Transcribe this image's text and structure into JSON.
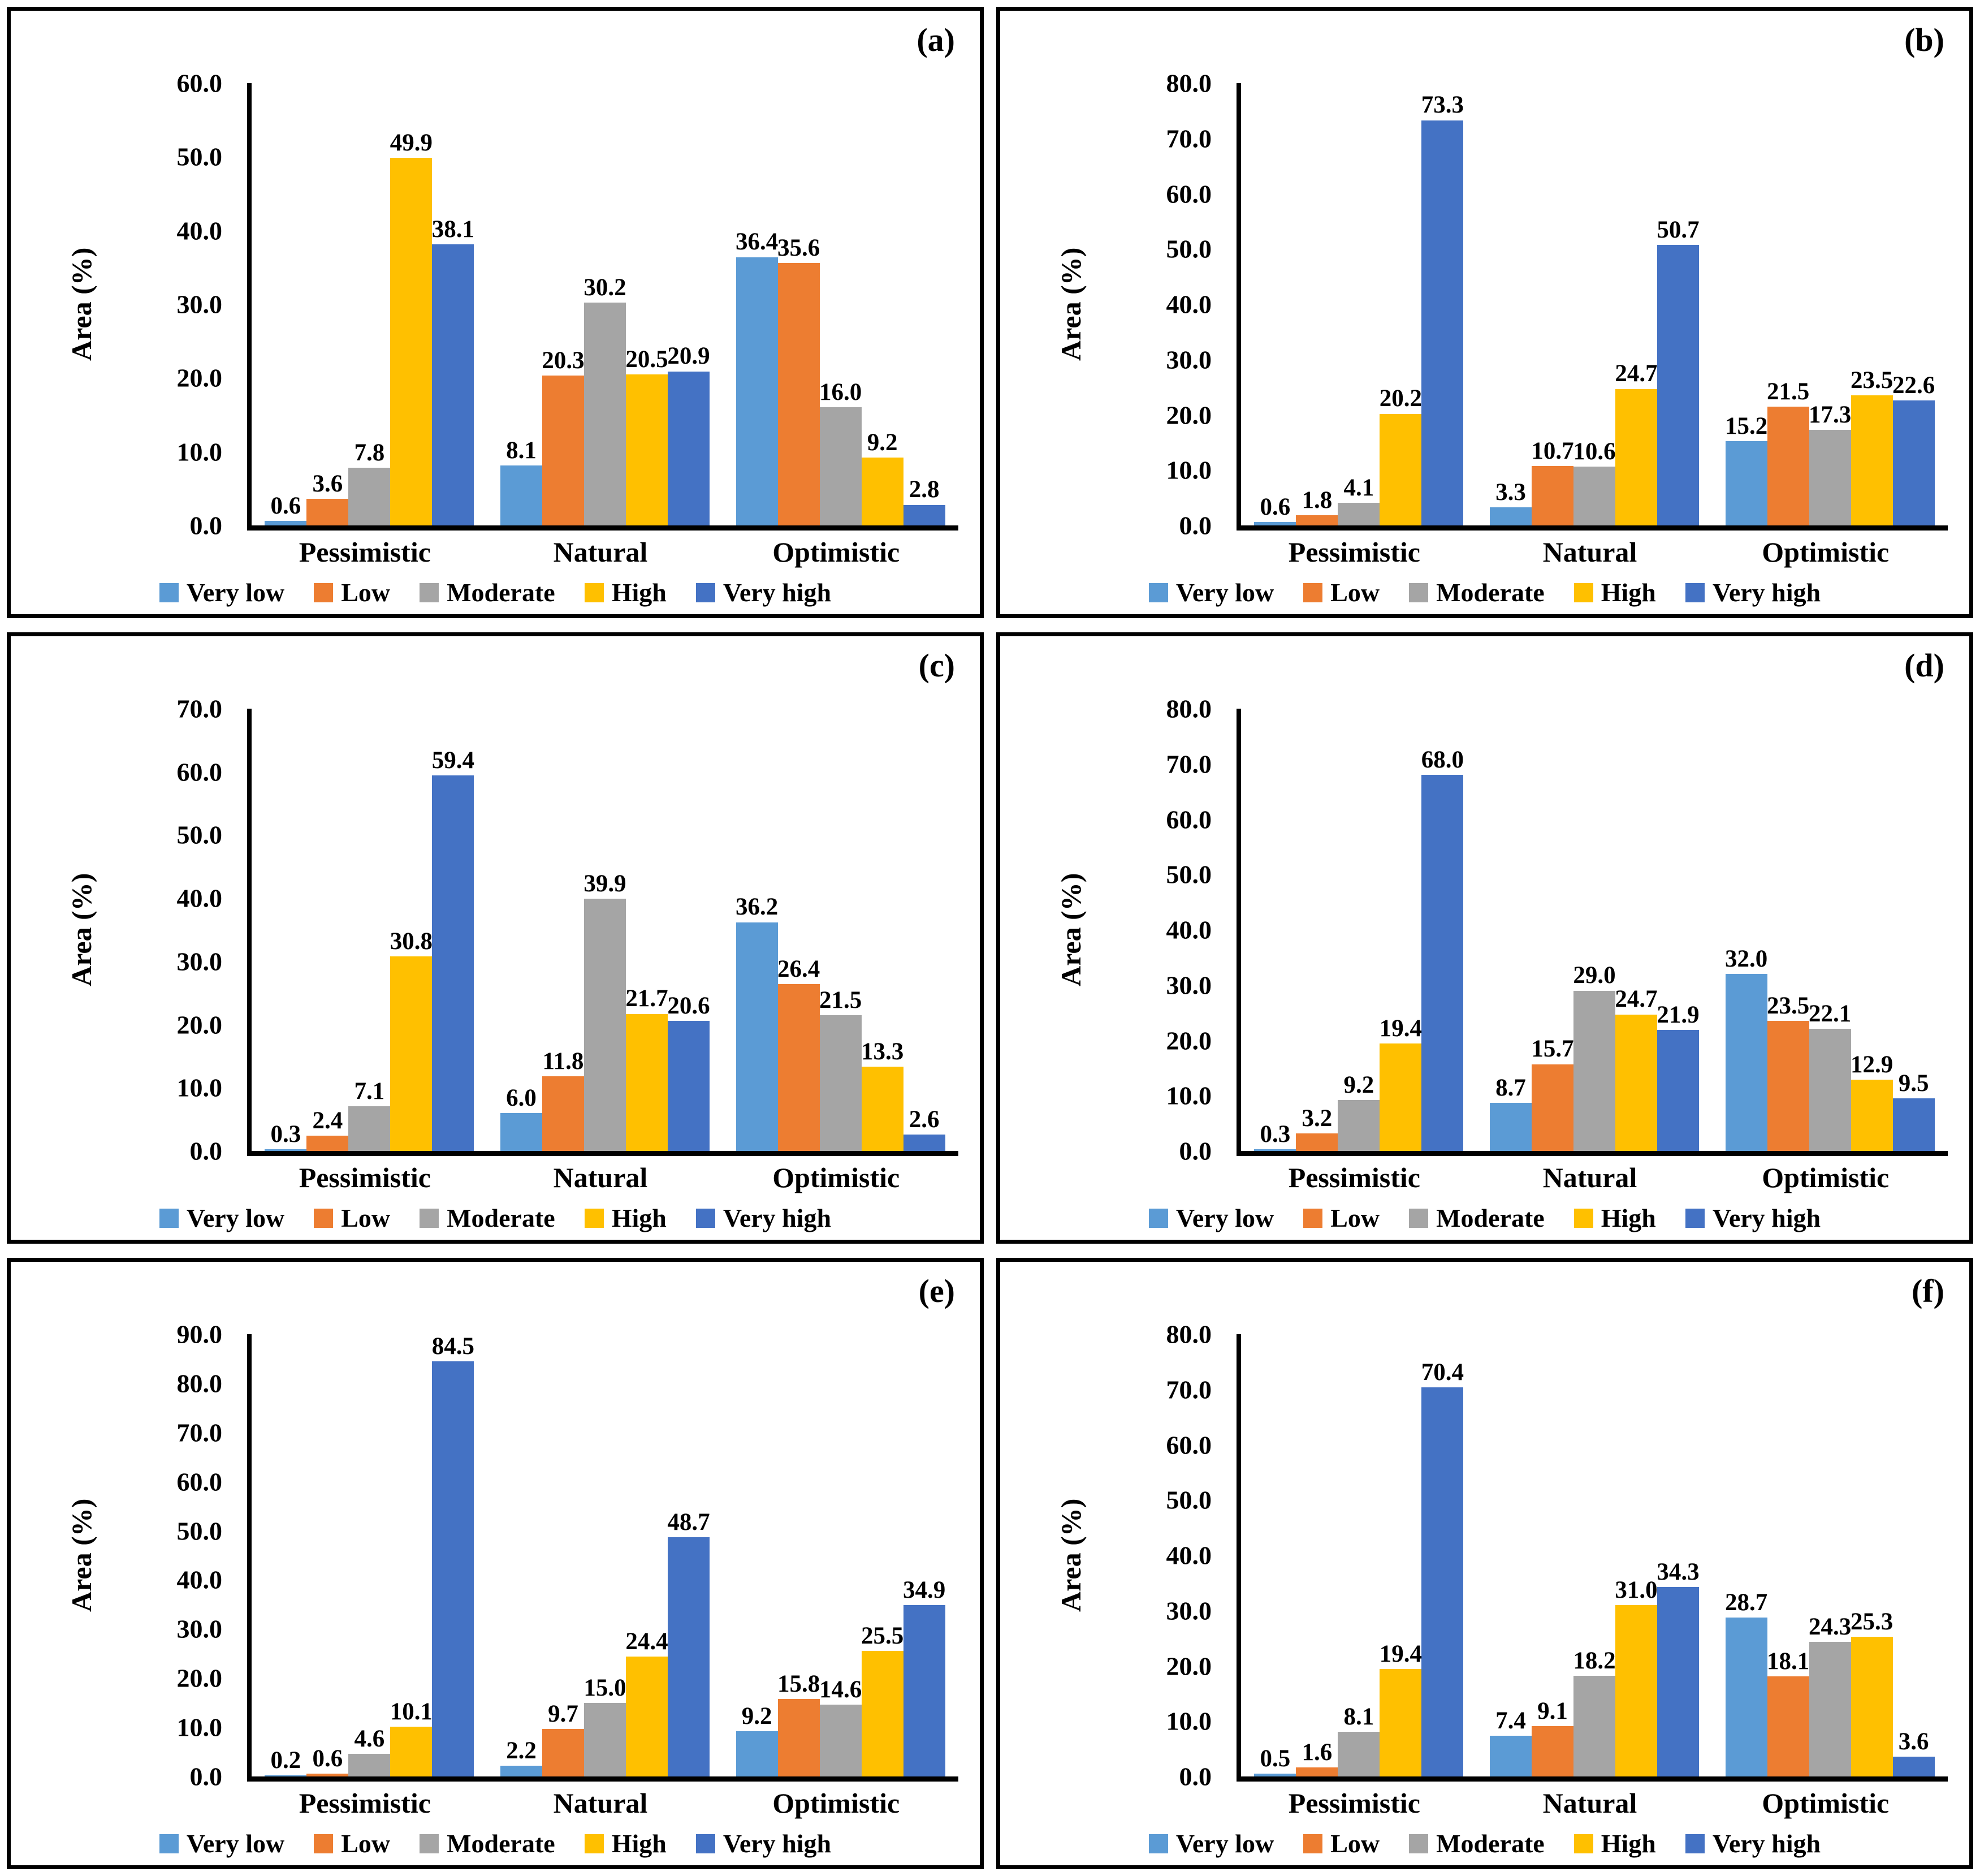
{
  "figure": {
    "ylabel": "Area (%)",
    "categories": [
      "Pessimistic",
      "Natural",
      "Optimistic"
    ],
    "legend": [
      "Very low",
      "Low",
      "Moderate",
      "High",
      "Very high"
    ],
    "colors": [
      "#5B9BD5",
      "#ED7D31",
      "#A5A5A5",
      "#FFC000",
      "#4472C4"
    ],
    "text_color": "#000000",
    "axis_color": "#000000"
  },
  "chart_data": [
    {
      "type": "bar",
      "panel_label": "(a)",
      "ylabel": "Area (%)",
      "ylim": [
        0,
        60
      ],
      "ytick_step": 10,
      "grid": false,
      "legend_position": "bottom",
      "categories": [
        "Pessimistic",
        "Natural",
        "Optimistic"
      ],
      "series": [
        {
          "name": "Very low",
          "values": [
            0.6,
            8.1,
            36.4
          ]
        },
        {
          "name": "Low",
          "values": [
            3.6,
            20.3,
            35.6
          ]
        },
        {
          "name": "Moderate",
          "values": [
            7.8,
            30.2,
            16.0
          ]
        },
        {
          "name": "High",
          "values": [
            49.9,
            20.5,
            9.2
          ]
        },
        {
          "name": "Very high",
          "values": [
            38.1,
            20.9,
            2.8
          ]
        }
      ]
    },
    {
      "type": "bar",
      "panel_label": "(b)",
      "ylabel": "Area (%)",
      "ylim": [
        0,
        80
      ],
      "ytick_step": 10,
      "grid": false,
      "legend_position": "bottom",
      "categories": [
        "Pessimistic",
        "Natural",
        "Optimistic"
      ],
      "series": [
        {
          "name": "Very low",
          "values": [
            0.6,
            3.3,
            15.2
          ]
        },
        {
          "name": "Low",
          "values": [
            1.8,
            10.7,
            21.5
          ]
        },
        {
          "name": "Moderate",
          "values": [
            4.1,
            10.6,
            17.3
          ]
        },
        {
          "name": "High",
          "values": [
            20.2,
            24.7,
            23.5
          ]
        },
        {
          "name": "Very high",
          "values": [
            73.3,
            50.7,
            22.6
          ]
        }
      ]
    },
    {
      "type": "bar",
      "panel_label": "(c)",
      "ylabel": "Area (%)",
      "ylim": [
        0,
        70
      ],
      "ytick_step": 10,
      "grid": false,
      "legend_position": "bottom",
      "categories": [
        "Pessimistic",
        "Natural",
        "Optimistic"
      ],
      "series": [
        {
          "name": "Very low",
          "values": [
            0.3,
            6.0,
            36.2
          ]
        },
        {
          "name": "Low",
          "values": [
            2.4,
            11.8,
            26.4
          ]
        },
        {
          "name": "Moderate",
          "values": [
            7.1,
            39.9,
            21.5
          ]
        },
        {
          "name": "High",
          "values": [
            30.8,
            21.7,
            13.3
          ]
        },
        {
          "name": "Very high",
          "values": [
            59.4,
            20.6,
            2.6
          ]
        }
      ]
    },
    {
      "type": "bar",
      "panel_label": "(d)",
      "ylabel": "Area (%)",
      "ylim": [
        0,
        80
      ],
      "ytick_step": 10,
      "grid": false,
      "legend_position": "bottom",
      "categories": [
        "Pessimistic",
        "Natural",
        "Optimistic"
      ],
      "series": [
        {
          "name": "Very low",
          "values": [
            0.3,
            8.7,
            32.0
          ]
        },
        {
          "name": "Low",
          "values": [
            3.2,
            15.7,
            23.5
          ]
        },
        {
          "name": "Moderate",
          "values": [
            9.2,
            29.0,
            22.1
          ]
        },
        {
          "name": "High",
          "values": [
            19.4,
            24.7,
            12.9
          ]
        },
        {
          "name": "Very high",
          "values": [
            68.0,
            21.9,
            9.5
          ]
        }
      ]
    },
    {
      "type": "bar",
      "panel_label": "(e)",
      "ylabel": "Area (%)",
      "ylim": [
        0,
        90
      ],
      "ytick_step": 10,
      "grid": false,
      "legend_position": "bottom",
      "categories": [
        "Pessimistic",
        "Natural",
        "Optimistic"
      ],
      "series": [
        {
          "name": "Very low",
          "values": [
            0.2,
            2.2,
            9.2
          ]
        },
        {
          "name": "Low",
          "values": [
            0.6,
            9.7,
            15.8
          ]
        },
        {
          "name": "Moderate",
          "values": [
            4.6,
            15.0,
            14.6
          ]
        },
        {
          "name": "High",
          "values": [
            10.1,
            24.4,
            25.5
          ]
        },
        {
          "name": "Very high",
          "values": [
            84.5,
            48.7,
            34.9
          ]
        }
      ]
    },
    {
      "type": "bar",
      "panel_label": "(f)",
      "ylabel": "Area (%)",
      "ylim": [
        0,
        80
      ],
      "ytick_step": 10,
      "grid": false,
      "legend_position": "bottom",
      "categories": [
        "Pessimistic",
        "Natural",
        "Optimistic"
      ],
      "series": [
        {
          "name": "Very low",
          "values": [
            0.5,
            7.4,
            28.7
          ]
        },
        {
          "name": "Low",
          "values": [
            1.6,
            9.1,
            18.1
          ]
        },
        {
          "name": "Moderate",
          "values": [
            8.1,
            18.2,
            24.3
          ]
        },
        {
          "name": "High",
          "values": [
            19.4,
            31.0,
            25.3
          ]
        },
        {
          "name": "Very high",
          "values": [
            70.4,
            34.3,
            3.6
          ]
        }
      ]
    }
  ]
}
